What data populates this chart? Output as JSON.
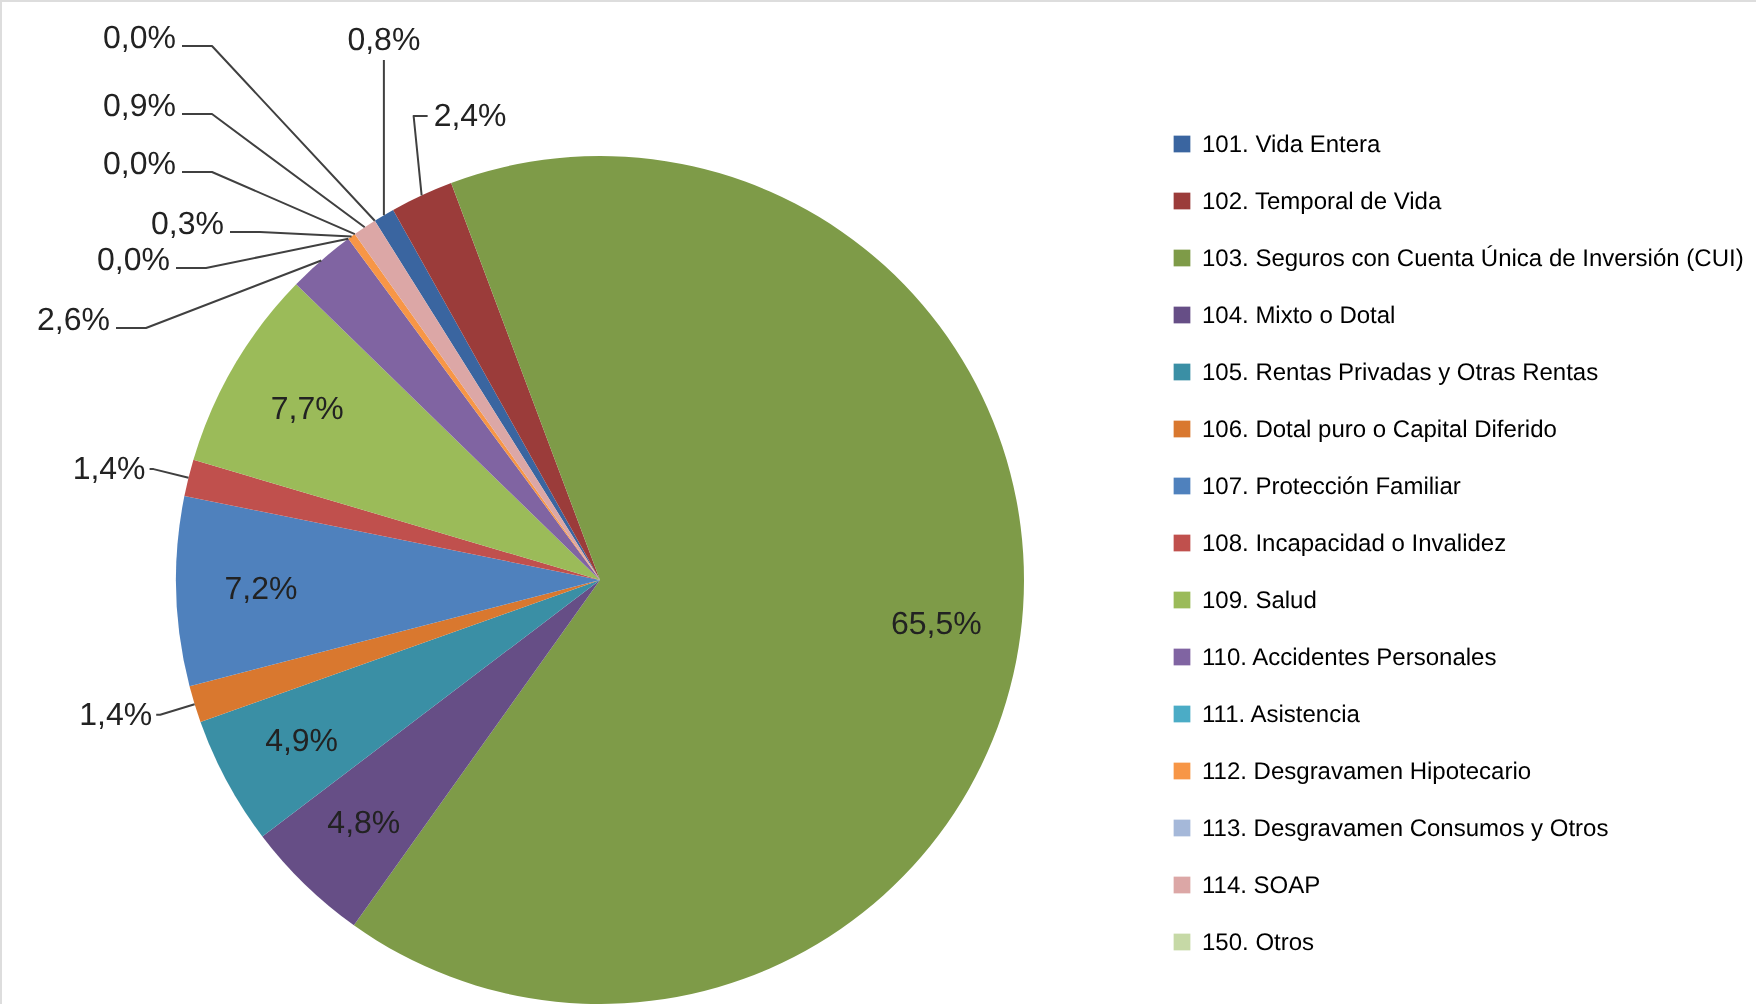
{
  "chart_data": {
    "type": "pie",
    "categories": [
      "101. Vida Entera",
      "102. Temporal de Vida",
      "103. Seguros con Cuenta Única de Inversión (CUI)",
      "104. Mixto o Dotal",
      "105. Rentas Privadas y Otras Rentas",
      "106. Dotal puro o Capital Diferido",
      "107. Protección Familiar",
      "108. Incapacidad o Invalidez",
      "109. Salud",
      "110. Accidentes Personales",
      "111. Asistencia",
      "112. Desgravamen Hipotecario",
      "113. Desgravamen Consumos y Otros",
      "114. SOAP",
      "150. Otros"
    ],
    "values": [
      0.8,
      2.4,
      65.5,
      4.8,
      4.9,
      1.4,
      7.2,
      1.4,
      7.7,
      2.6,
      0.0,
      0.3,
      0.0,
      0.9,
      0.0
    ],
    "value_labels": [
      "0,8%",
      "2,4%",
      "65,5%",
      "4,8%",
      "4,9%",
      "1,4%",
      "7,2%",
      "1,4%",
      "7,7%",
      "2,6%",
      "0,0%",
      "0,3%",
      "0,0%",
      "0,9%",
      "0,0%"
    ],
    "colors": [
      "#3a65a0",
      "#9b3c3a",
      "#7e9b48",
      "#664e86",
      "#3a8fa5",
      "#d9782f",
      "#4f81bd",
      "#c0504d",
      "#9bbb59",
      "#8064a2",
      "#4bacc6",
      "#f79646",
      "#a5b8d9",
      "#dca7a6",
      "#c6d9a6"
    ],
    "legend": "right"
  }
}
